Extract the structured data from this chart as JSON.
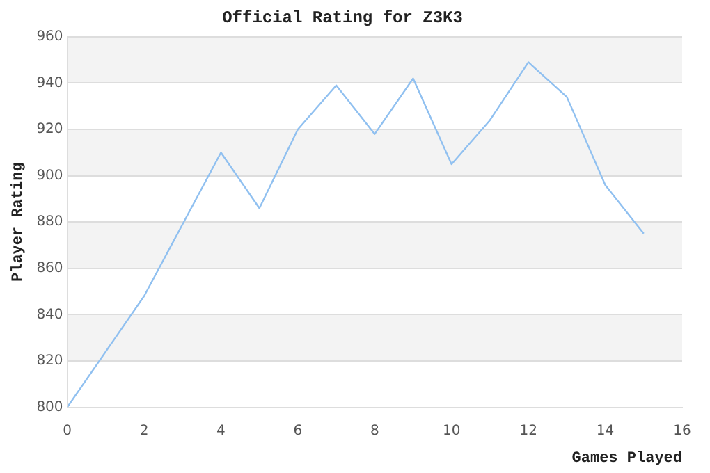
{
  "chart_data": {
    "type": "line",
    "title": "Official Rating for Z3K3",
    "xlabel": "Games Played",
    "ylabel": "Player Rating",
    "x": [
      0,
      1,
      2,
      3,
      4,
      5,
      6,
      7,
      8,
      9,
      10,
      11,
      12,
      13,
      14,
      15
    ],
    "series": [
      {
        "color": "#90c0f0",
        "values": [
          800,
          824,
          848,
          879,
          910,
          886,
          920,
          939,
          918,
          942,
          905,
          924,
          949,
          934,
          896,
          875
        ]
      }
    ],
    "xlim": [
      0,
      16
    ],
    "xticks": [
      0,
      2,
      4,
      6,
      8,
      10,
      12,
      14,
      16
    ],
    "ylim": [
      800,
      960
    ],
    "yticks": [
      800,
      820,
      840,
      860,
      880,
      900,
      920,
      940,
      960
    ],
    "grid": "y",
    "legend": false,
    "marker": "none",
    "line_style": "solid"
  }
}
